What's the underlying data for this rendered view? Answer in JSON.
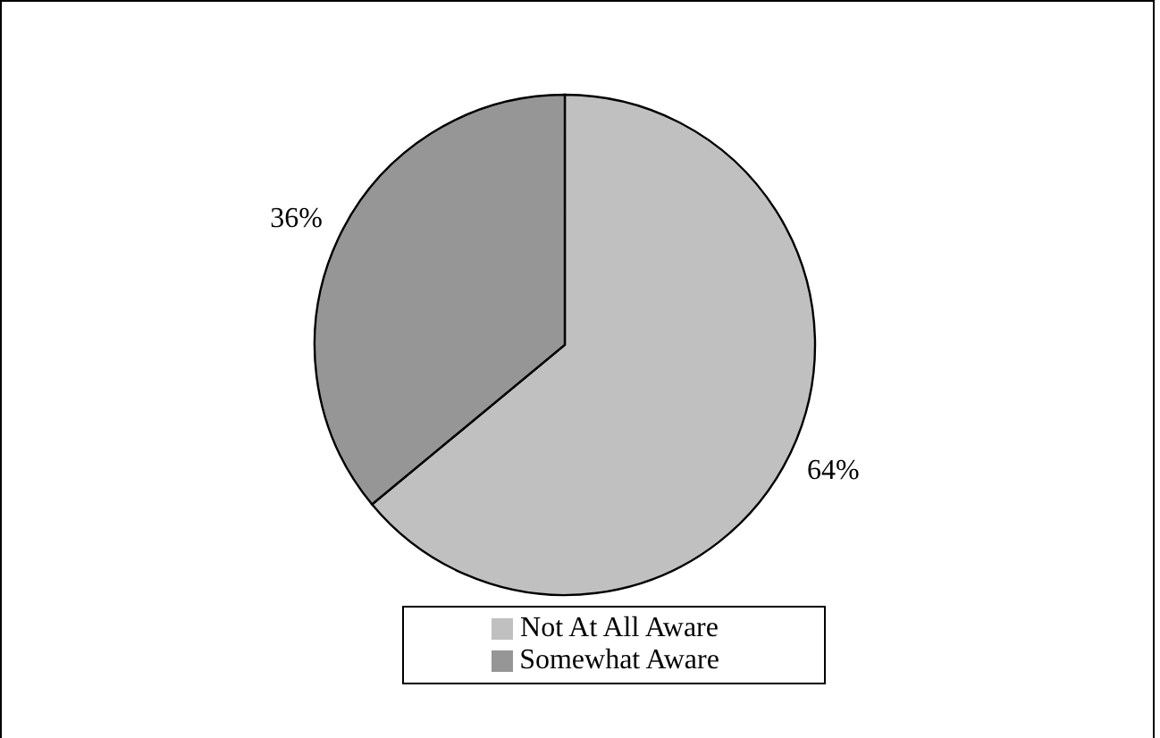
{
  "chart_data": {
    "type": "pie",
    "categories": [
      "Not At All Aware",
      "Somewhat Aware"
    ],
    "values": [
      64,
      36
    ],
    "colors": [
      "#c0c0c0",
      "#969696"
    ],
    "value_labels": [
      "64%",
      "36%"
    ],
    "legend": "bottom"
  }
}
